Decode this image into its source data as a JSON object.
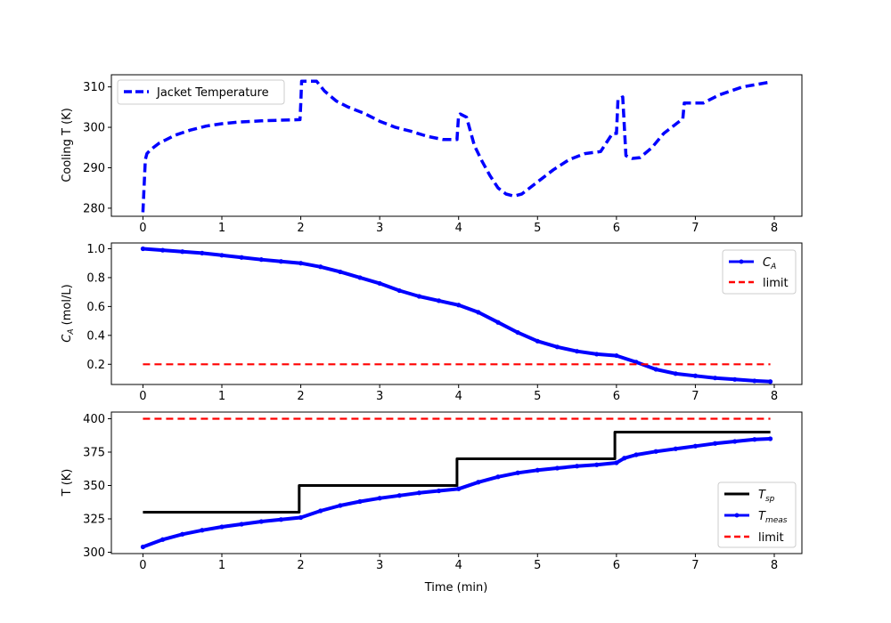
{
  "chart_data": [
    {
      "type": "line",
      "xlabel": "",
      "ylabel": "Cooling T (K)",
      "xlim": [
        -0.4,
        8.35
      ],
      "ylim": [
        278,
        313
      ],
      "xticks": [
        0,
        1,
        2,
        3,
        4,
        5,
        6,
        7,
        8
      ],
      "yticks": [
        280,
        290,
        300,
        310
      ],
      "xtick_labels": [
        "0",
        "1",
        "2",
        "3",
        "4",
        "5",
        "6",
        "7",
        "8"
      ],
      "ytick_labels": [
        "280",
        "290",
        "300",
        "310"
      ],
      "legend_position": "upper-left",
      "grid": false,
      "series": [
        {
          "name": "Jacket Temperature",
          "color": "#0000ff",
          "style": "dashed",
          "x": [
            0.0,
            0.03,
            0.05,
            0.1,
            0.2,
            0.3,
            0.4,
            0.6,
            0.8,
            1.0,
            1.2,
            1.5,
            1.8,
            1.99,
            2.0,
            2.01,
            2.05,
            2.2,
            2.3,
            2.45,
            2.6,
            2.8,
            3.0,
            3.2,
            3.4,
            3.6,
            3.8,
            3.98,
            4.0,
            4.02,
            4.1,
            4.2,
            4.3,
            4.4,
            4.5,
            4.6,
            4.7,
            4.8,
            5.0,
            5.2,
            5.4,
            5.6,
            5.8,
            5.95,
            6.0,
            6.02,
            6.08,
            6.12,
            6.2,
            6.3,
            6.45,
            6.6,
            6.8,
            6.84,
            6.86,
            7.0,
            7.1,
            7.3,
            7.6,
            7.95
          ],
          "y": [
            279,
            292,
            293.5,
            294.5,
            296,
            297,
            298,
            299.3,
            300.3,
            300.9,
            301.3,
            301.6,
            301.8,
            301.9,
            306,
            311.4,
            311.4,
            311.4,
            309,
            306.5,
            305,
            303.5,
            301.5,
            300,
            299,
            297.8,
            297.0,
            297.0,
            303,
            303.3,
            302.5,
            295.5,
            291.5,
            288.0,
            285.0,
            283.5,
            283.0,
            283.5,
            286.5,
            289.5,
            292.0,
            293.5,
            294.0,
            298.5,
            298.5,
            307.0,
            307.5,
            293.0,
            292.3,
            292.5,
            295.0,
            298.5,
            301.5,
            302.0,
            306.0,
            306.0,
            306.0,
            308.0,
            310.0,
            311.2
          ]
        }
      ]
    },
    {
      "type": "line",
      "xlabel": "",
      "ylabel": "C_A (mol/L)",
      "ylabel_main": "C",
      "ylabel_sub": "A",
      "ylabel_rest": " (mol/L)",
      "xlim": [
        -0.4,
        8.35
      ],
      "ylim": [
        0.06,
        1.04
      ],
      "xticks": [
        0,
        1,
        2,
        3,
        4,
        5,
        6,
        7,
        8
      ],
      "yticks": [
        0.2,
        0.4,
        0.6,
        0.8,
        1.0
      ],
      "xtick_labels": [
        "0",
        "1",
        "2",
        "3",
        "4",
        "5",
        "6",
        "7",
        "8"
      ],
      "ytick_labels": [
        "0.2",
        "0.4",
        "0.6",
        "0.8",
        "1.0"
      ],
      "legend_position": "upper-right",
      "grid": false,
      "series": [
        {
          "name": "C_A",
          "name_main": "C",
          "name_sub": "A",
          "color": "#0000ff",
          "style": "solid-dots",
          "x": [
            0.0,
            0.25,
            0.5,
            0.75,
            1.0,
            1.25,
            1.5,
            1.75,
            2.0,
            2.25,
            2.5,
            2.75,
            3.0,
            3.25,
            3.5,
            3.75,
            4.0,
            4.25,
            4.5,
            4.75,
            5.0,
            5.25,
            5.5,
            5.75,
            6.0,
            6.25,
            6.5,
            6.75,
            7.0,
            7.25,
            7.5,
            7.75,
            7.95
          ],
          "y": [
            1.0,
            0.99,
            0.98,
            0.97,
            0.955,
            0.94,
            0.925,
            0.912,
            0.9,
            0.875,
            0.84,
            0.8,
            0.76,
            0.71,
            0.67,
            0.64,
            0.61,
            0.56,
            0.49,
            0.42,
            0.36,
            0.32,
            0.29,
            0.27,
            0.26,
            0.215,
            0.165,
            0.135,
            0.12,
            0.105,
            0.095,
            0.085,
            0.08
          ]
        },
        {
          "name": "limit",
          "color": "#ff0000",
          "style": "dashed",
          "x": [
            0.0,
            7.95
          ],
          "y": [
            0.2,
            0.2
          ]
        }
      ]
    },
    {
      "type": "line",
      "xlabel": "Time (min)",
      "ylabel": "T (K)",
      "xlim": [
        -0.4,
        8.35
      ],
      "ylim": [
        299,
        405
      ],
      "xticks": [
        0,
        1,
        2,
        3,
        4,
        5,
        6,
        7,
        8
      ],
      "yticks": [
        300,
        325,
        350,
        375,
        400
      ],
      "xtick_labels": [
        "0",
        "1",
        "2",
        "3",
        "4",
        "5",
        "6",
        "7",
        "8"
      ],
      "ytick_labels": [
        "300",
        "325",
        "350",
        "375",
        "400"
      ],
      "legend_position": "lower-right",
      "grid": false,
      "series": [
        {
          "name": "T_sp",
          "name_main": "T",
          "name_sub": "sp",
          "color": "#000000",
          "style": "solid",
          "x": [
            0.0,
            1.98,
            1.98,
            3.98,
            3.98,
            5.98,
            5.98,
            7.95
          ],
          "y": [
            330,
            330,
            350,
            350,
            370,
            370,
            390,
            390
          ]
        },
        {
          "name": "T_meas",
          "name_main": "T",
          "name_sub": "meas",
          "color": "#0000ff",
          "style": "solid-dots",
          "x": [
            0.0,
            0.25,
            0.5,
            0.75,
            1.0,
            1.25,
            1.5,
            1.75,
            2.0,
            2.25,
            2.5,
            2.75,
            3.0,
            3.25,
            3.5,
            3.75,
            4.0,
            4.25,
            4.5,
            4.75,
            5.0,
            5.25,
            5.5,
            5.75,
            6.0,
            6.1,
            6.25,
            6.5,
            6.75,
            7.0,
            7.25,
            7.5,
            7.75,
            7.95
          ],
          "y": [
            304,
            309.5,
            313.5,
            316.5,
            319,
            321,
            323,
            324.5,
            326,
            331,
            335,
            338,
            340.5,
            342.5,
            344.5,
            346,
            347.5,
            352.5,
            356.5,
            359.5,
            361.5,
            363,
            364.5,
            365.5,
            367,
            370.5,
            373,
            375.5,
            377.5,
            379.5,
            381.5,
            383,
            384.5,
            385
          ]
        },
        {
          "name": "limit",
          "color": "#ff0000",
          "style": "dashed",
          "x": [
            0.0,
            7.95
          ],
          "y": [
            400,
            400
          ]
        }
      ]
    }
  ]
}
